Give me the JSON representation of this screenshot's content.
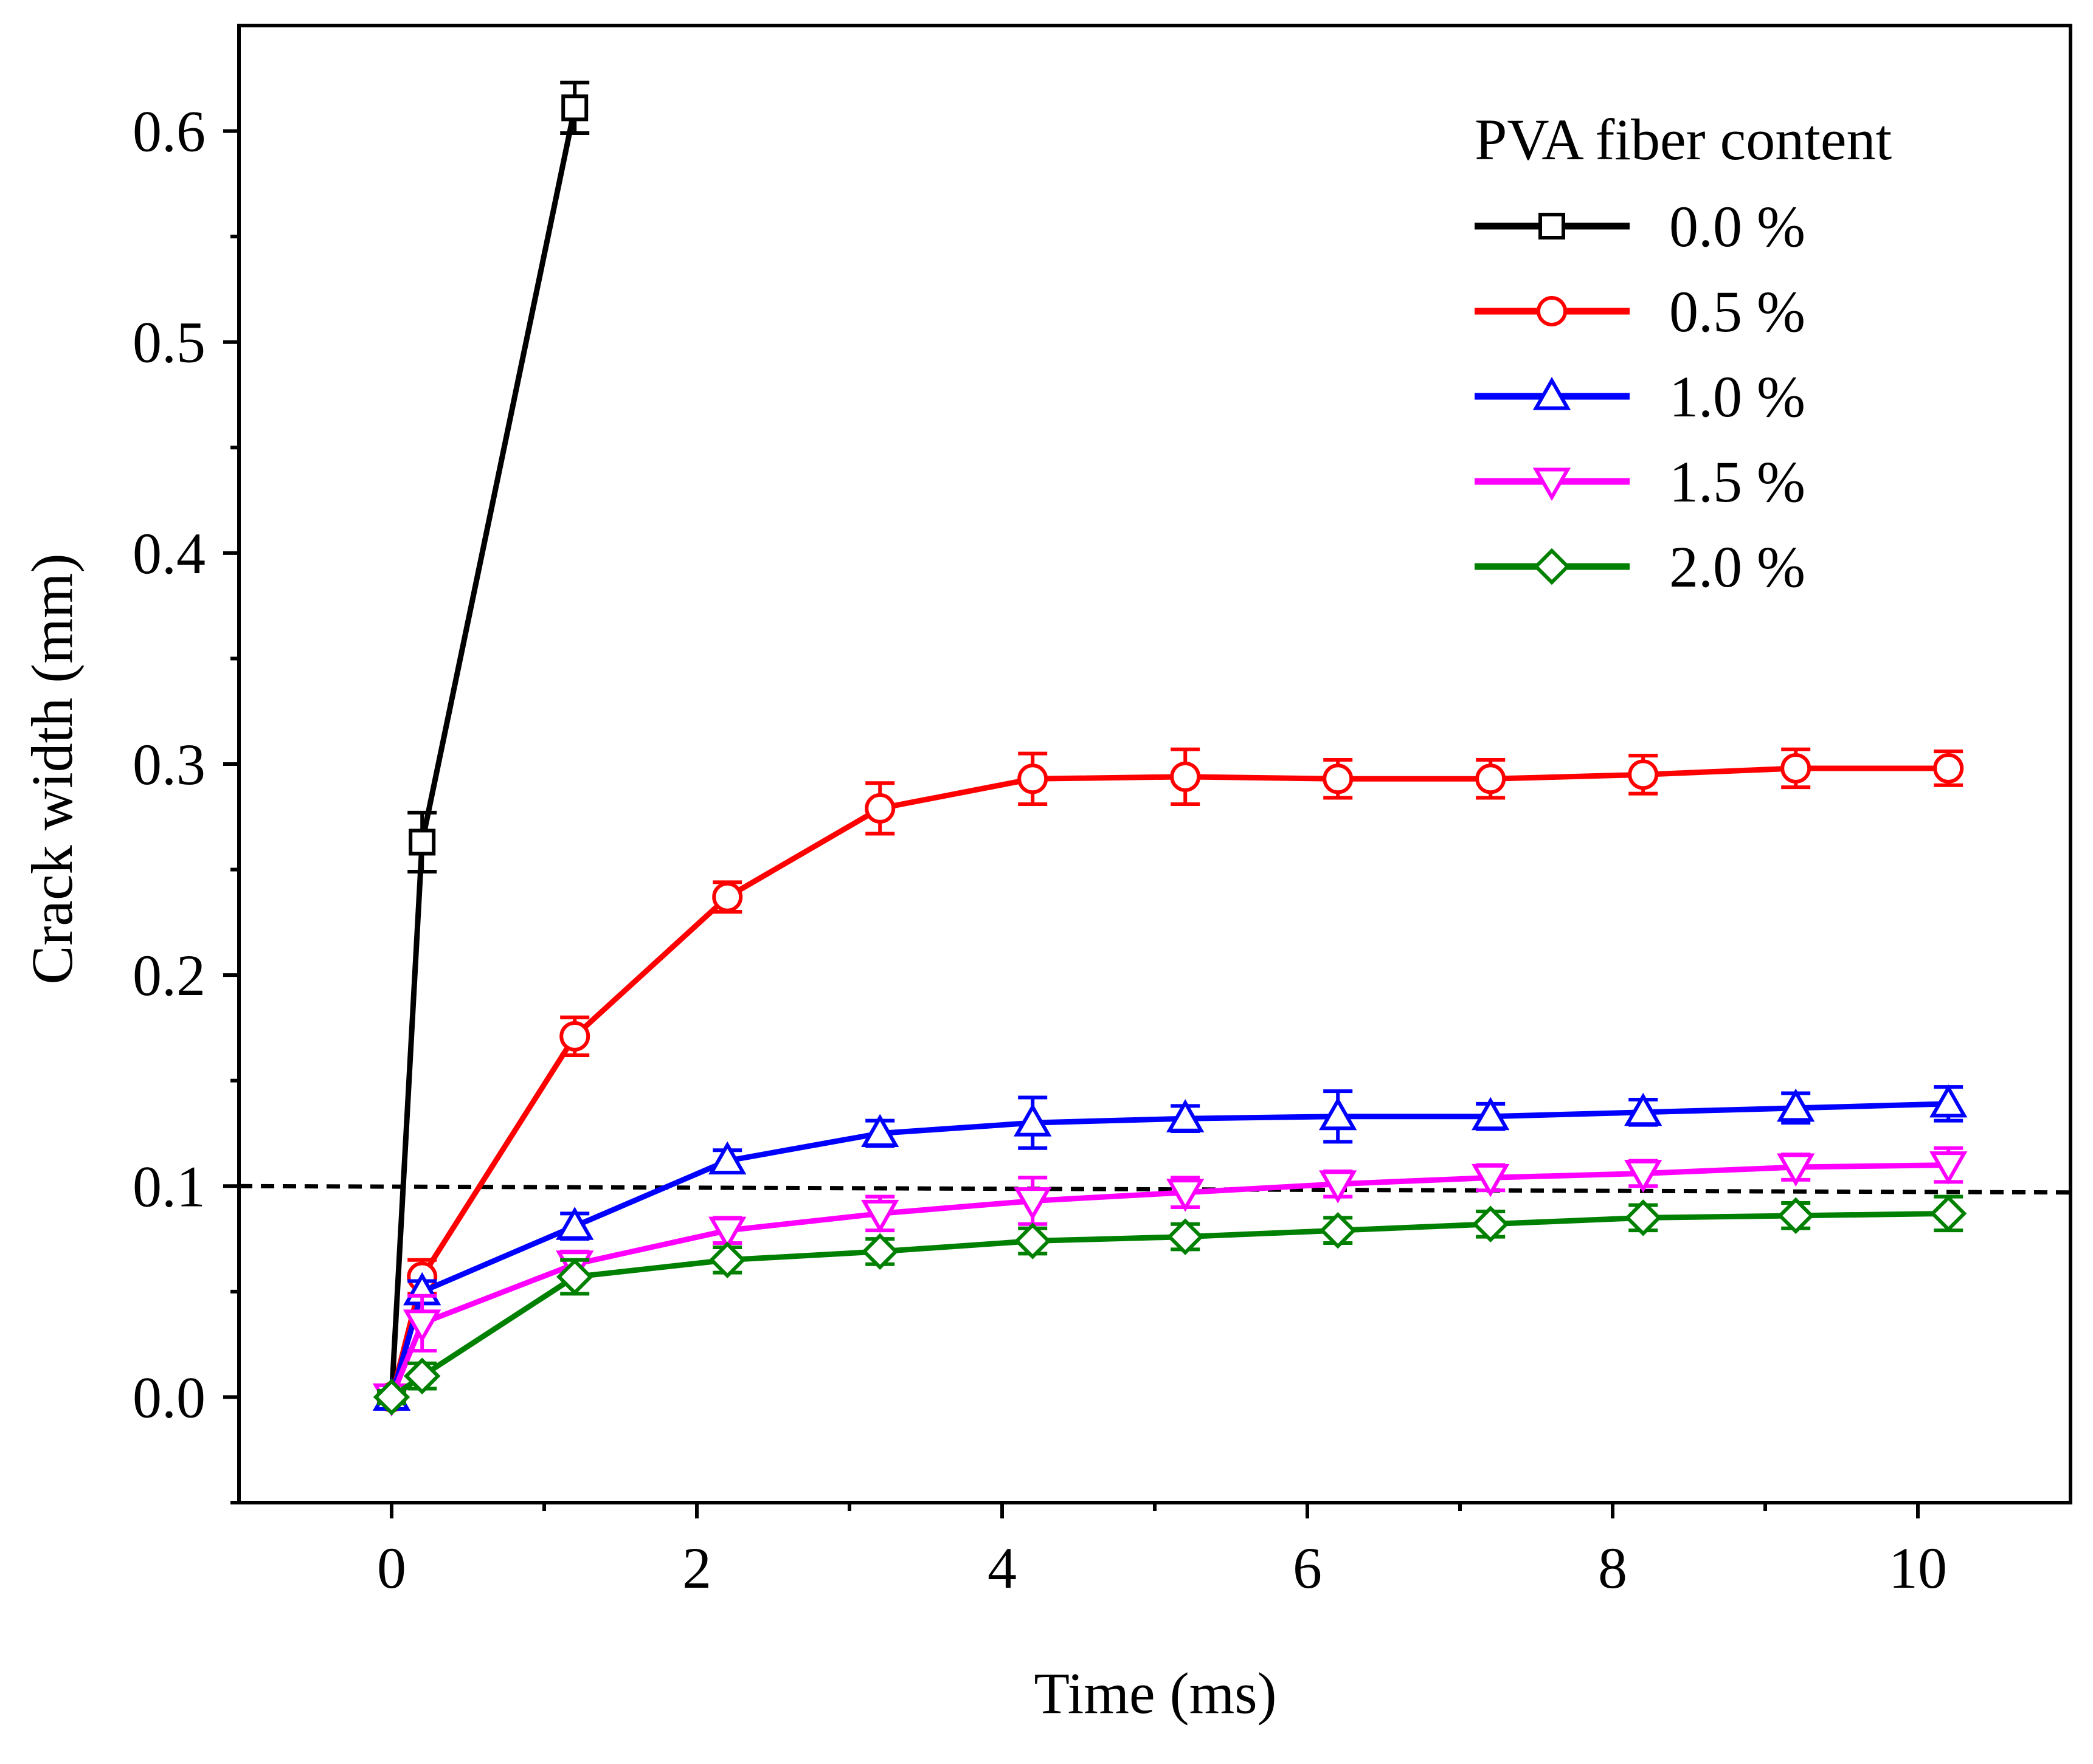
{
  "chart_data": {
    "type": "line",
    "title": "",
    "xlabel": "Time (ms)",
    "ylabel": "Crack width (mm)",
    "xlim": [
      -1,
      11
    ],
    "ylim": [
      -0.05,
      0.65
    ],
    "x_ticks": [
      0,
      2,
      4,
      6,
      8,
      10
    ],
    "x_tick_labels": [
      "0",
      "2",
      "4",
      "6",
      "8",
      "10"
    ],
    "x_minor_ticks": [
      1,
      3,
      5,
      7,
      9
    ],
    "y_ticks": [
      0.0,
      0.1,
      0.2,
      0.3,
      0.4,
      0.5,
      0.6
    ],
    "y_tick_labels": [
      "0.0",
      "0.1",
      "0.2",
      "0.3",
      "0.4",
      "0.5",
      "0.6"
    ],
    "y_minor_ticks": [
      -0.05,
      0.05,
      0.15,
      0.25,
      0.35,
      0.45,
      0.55
    ],
    "grid": false,
    "legend_title": "PVA fiber content",
    "legend_position": "top-right",
    "reference_line": {
      "y": [
        0.1,
        0.097
      ],
      "x": [
        -1,
        11
      ],
      "style": "dashed",
      "color": "#000000"
    },
    "series": [
      {
        "name": "0.0 %",
        "color": "#000000",
        "marker": "square",
        "x": [
          0,
          0.2,
          1.2
        ],
        "y": [
          0.0,
          0.263,
          0.611
        ],
        "err": [
          0.003,
          0.014,
          0.012
        ]
      },
      {
        "name": "0.5 %",
        "color": "#ff0000",
        "marker": "circle",
        "x": [
          0,
          0.2,
          1.2,
          2.2,
          3.2,
          4.2,
          5.2,
          6.2,
          7.2,
          8.2,
          9.2,
          10.2
        ],
        "y": [
          0.0,
          0.057,
          0.171,
          0.237,
          0.279,
          0.293,
          0.294,
          0.293,
          0.293,
          0.295,
          0.298,
          0.298
        ],
        "err": [
          0.003,
          0.008,
          0.009,
          0.007,
          0.012,
          0.012,
          0.013,
          0.009,
          0.009,
          0.009,
          0.009,
          0.008
        ]
      },
      {
        "name": "1.0 %",
        "color": "#0000ff",
        "marker": "triangle-up",
        "x": [
          0,
          0.2,
          1.2,
          2.2,
          3.2,
          4.2,
          5.2,
          6.2,
          7.2,
          8.2,
          9.2,
          10.2
        ],
        "y": [
          0.0,
          0.05,
          0.081,
          0.112,
          0.125,
          0.13,
          0.132,
          0.133,
          0.133,
          0.135,
          0.137,
          0.139
        ],
        "err": [
          0.003,
          0.005,
          0.006,
          0.005,
          0.006,
          0.012,
          0.006,
          0.012,
          0.006,
          0.006,
          0.007,
          0.008
        ]
      },
      {
        "name": "1.5 %",
        "color": "#ff00ff",
        "marker": "triangle-down",
        "x": [
          0,
          0.2,
          1.2,
          2.2,
          3.2,
          4.2,
          5.2,
          6.2,
          7.2,
          8.2,
          9.2,
          10.2
        ],
        "y": [
          0.0,
          0.035,
          0.063,
          0.079,
          0.087,
          0.093,
          0.097,
          0.101,
          0.104,
          0.106,
          0.109,
          0.11
        ],
        "err": [
          0.003,
          0.013,
          0.006,
          0.006,
          0.008,
          0.011,
          0.007,
          0.006,
          0.006,
          0.006,
          0.006,
          0.008
        ]
      },
      {
        "name": "2.0 %",
        "color": "#008000",
        "marker": "diamond",
        "x": [
          0,
          0.2,
          1.2,
          2.2,
          3.2,
          4.2,
          5.2,
          6.2,
          7.2,
          8.2,
          9.2,
          10.2
        ],
        "y": [
          0.0,
          0.01,
          0.057,
          0.065,
          0.069,
          0.074,
          0.076,
          0.079,
          0.082,
          0.085,
          0.086,
          0.087
        ],
        "err": [
          0.003,
          0.006,
          0.008,
          0.006,
          0.006,
          0.006,
          0.006,
          0.006,
          0.006,
          0.006,
          0.006,
          0.008
        ]
      }
    ]
  }
}
